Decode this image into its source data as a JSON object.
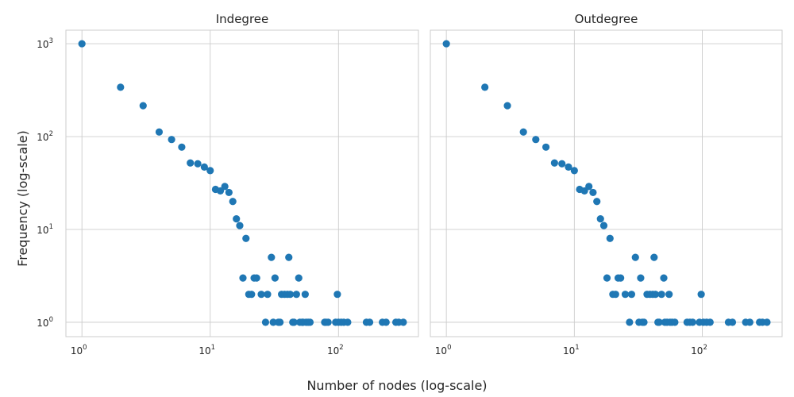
{
  "figure": {
    "xlabel": "Number of nodes (log-scale)",
    "ylabel": "Frequency (log-scale)"
  },
  "colors": {
    "marker": "#1f77b4"
  },
  "chart_data": [
    {
      "type": "scatter",
      "title": "Indegree",
      "xscale": "log",
      "yscale": "log",
      "xlim": [
        0.75,
        420
      ],
      "ylim": [
        0.7,
        1400
      ],
      "xticks": [
        {
          "base": "10",
          "exp": "0",
          "value": 1
        },
        {
          "base": "10",
          "exp": "1",
          "value": 10
        },
        {
          "base": "10",
          "exp": "2",
          "value": 100
        }
      ],
      "yticks": [
        {
          "base": "10",
          "exp": "0",
          "value": 1
        },
        {
          "base": "10",
          "exp": "1",
          "value": 10
        },
        {
          "base": "10",
          "exp": "2",
          "value": 100
        },
        {
          "base": "10",
          "exp": "3",
          "value": 1000
        }
      ],
      "grid": true,
      "points": [
        [
          1,
          1000
        ],
        [
          2,
          340
        ],
        [
          3,
          215
        ],
        [
          4,
          112
        ],
        [
          5,
          93
        ],
        [
          6,
          77
        ],
        [
          7,
          52
        ],
        [
          8,
          51
        ],
        [
          9,
          47
        ],
        [
          10,
          43
        ],
        [
          11,
          27
        ],
        [
          12,
          26
        ],
        [
          13,
          29
        ],
        [
          14,
          25
        ],
        [
          15,
          20
        ],
        [
          16,
          13
        ],
        [
          17,
          11
        ],
        [
          18,
          3
        ],
        [
          19,
          8
        ],
        [
          20,
          2
        ],
        [
          21,
          2
        ],
        [
          22,
          3
        ],
        [
          23,
          3
        ],
        [
          25,
          2
        ],
        [
          27,
          1
        ],
        [
          28,
          2
        ],
        [
          30,
          5
        ],
        [
          31,
          1
        ],
        [
          32,
          3
        ],
        [
          34,
          1
        ],
        [
          35,
          1
        ],
        [
          36,
          2
        ],
        [
          38,
          2
        ],
        [
          40,
          2
        ],
        [
          41,
          5
        ],
        [
          42,
          2
        ],
        [
          44,
          1
        ],
        [
          45,
          1
        ],
        [
          47,
          2
        ],
        [
          49,
          3
        ],
        [
          50,
          1
        ],
        [
          52,
          1
        ],
        [
          53,
          1
        ],
        [
          55,
          2
        ],
        [
          56,
          1
        ],
        [
          58,
          1
        ],
        [
          60,
          1
        ],
        [
          78,
          1
        ],
        [
          80,
          1
        ],
        [
          83,
          1
        ],
        [
          95,
          1
        ],
        [
          98,
          2
        ],
        [
          100,
          1
        ],
        [
          105,
          1
        ],
        [
          110,
          1
        ],
        [
          118,
          1
        ],
        [
          165,
          1
        ],
        [
          175,
          1
        ],
        [
          220,
          1
        ],
        [
          235,
          1
        ],
        [
          280,
          1
        ],
        [
          295,
          1
        ],
        [
          320,
          1
        ]
      ]
    },
    {
      "type": "scatter",
      "title": "Outdegree",
      "xscale": "log",
      "yscale": "log",
      "xlim": [
        0.75,
        420
      ],
      "ylim": [
        0.7,
        1400
      ],
      "xticks": [
        {
          "base": "10",
          "exp": "0",
          "value": 1
        },
        {
          "base": "10",
          "exp": "1",
          "value": 10
        },
        {
          "base": "10",
          "exp": "2",
          "value": 100
        }
      ],
      "yticks": [],
      "grid": true,
      "points": [
        [
          1,
          1000
        ],
        [
          2,
          340
        ],
        [
          3,
          215
        ],
        [
          4,
          112
        ],
        [
          5,
          93
        ],
        [
          6,
          77
        ],
        [
          7,
          52
        ],
        [
          8,
          51
        ],
        [
          9,
          47
        ],
        [
          10,
          43
        ],
        [
          11,
          27
        ],
        [
          12,
          26
        ],
        [
          13,
          29
        ],
        [
          14,
          25
        ],
        [
          15,
          20
        ],
        [
          16,
          13
        ],
        [
          17,
          11
        ],
        [
          18,
          3
        ],
        [
          19,
          8
        ],
        [
          20,
          2
        ],
        [
          21,
          2
        ],
        [
          22,
          3
        ],
        [
          23,
          3
        ],
        [
          25,
          2
        ],
        [
          27,
          1
        ],
        [
          28,
          2
        ],
        [
          30,
          5
        ],
        [
          32,
          1
        ],
        [
          33,
          3
        ],
        [
          34,
          1
        ],
        [
          35,
          1
        ],
        [
          37,
          2
        ],
        [
          39,
          2
        ],
        [
          41,
          2
        ],
        [
          42,
          5
        ],
        [
          43,
          2
        ],
        [
          45,
          1
        ],
        [
          46,
          1
        ],
        [
          48,
          2
        ],
        [
          50,
          3
        ],
        [
          51,
          1
        ],
        [
          53,
          1
        ],
        [
          55,
          2
        ],
        [
          56,
          1
        ],
        [
          58,
          1
        ],
        [
          61,
          1
        ],
        [
          76,
          1
        ],
        [
          80,
          1
        ],
        [
          84,
          1
        ],
        [
          95,
          1
        ],
        [
          98,
          2
        ],
        [
          102,
          1
        ],
        [
          108,
          1
        ],
        [
          115,
          1
        ],
        [
          160,
          1
        ],
        [
          172,
          1
        ],
        [
          218,
          1
        ],
        [
          235,
          1
        ],
        [
          280,
          1
        ],
        [
          295,
          1
        ],
        [
          320,
          1
        ]
      ]
    }
  ]
}
